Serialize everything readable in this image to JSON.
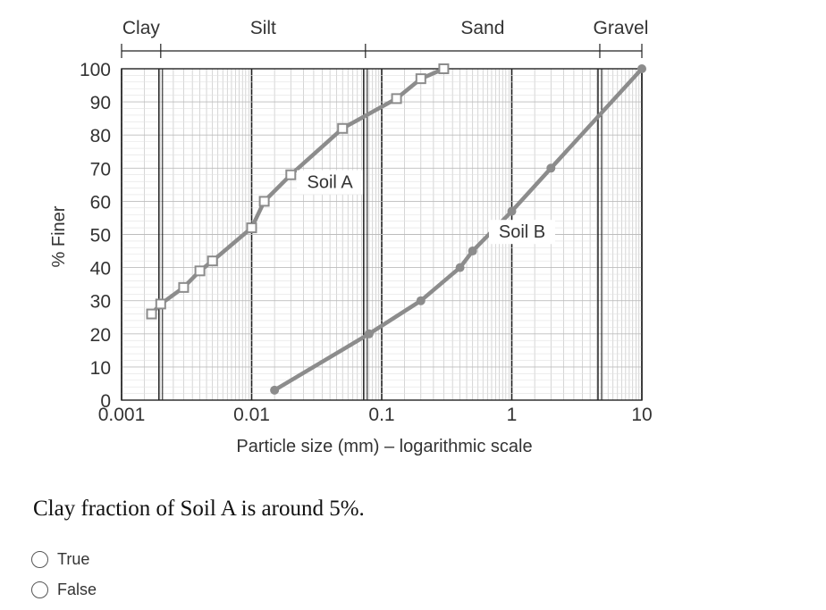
{
  "chart_data": {
    "type": "line",
    "x_scale": "log",
    "xlim": [
      0.001,
      10
    ],
    "ylim": [
      0,
      100
    ],
    "xlabel": "Particle size (mm) – logarithmic scale",
    "ylabel": "% Finer",
    "x_ticks": [
      {
        "value": 0.001,
        "label": "0.001"
      },
      {
        "value": 0.01,
        "label": "0.01"
      },
      {
        "value": 0.1,
        "label": "0.1"
      },
      {
        "value": 1,
        "label": "1"
      },
      {
        "value": 10,
        "label": "10"
      }
    ],
    "y_ticks": [
      0,
      10,
      20,
      30,
      40,
      50,
      60,
      70,
      80,
      90,
      100
    ],
    "grid": true,
    "series": [
      {
        "name": "Soil A",
        "marker": "open-square",
        "color": "#8c8c8c",
        "points": [
          [
            0.0017,
            26
          ],
          [
            0.002,
            29
          ],
          [
            0.003,
            34
          ],
          [
            0.004,
            39
          ],
          [
            0.005,
            42
          ],
          [
            0.01,
            52
          ],
          [
            0.0125,
            60
          ],
          [
            0.02,
            68
          ],
          [
            0.05,
            82
          ],
          [
            0.13,
            91
          ],
          [
            0.2,
            97
          ],
          [
            0.3,
            100
          ]
        ]
      },
      {
        "name": "Soil B",
        "marker": "filled-circle",
        "color": "#8c8c8c",
        "points": [
          [
            0.015,
            3
          ],
          [
            0.08,
            20
          ],
          [
            0.2,
            30
          ],
          [
            0.4,
            40
          ],
          [
            0.5,
            45
          ],
          [
            1,
            57
          ],
          [
            2,
            70
          ],
          [
            10,
            100
          ]
        ]
      }
    ],
    "annotations": [
      {
        "text": "Soil A",
        "x": 0.04,
        "y": 64
      },
      {
        "text": "Soil B",
        "x": 1.2,
        "y": 49
      }
    ],
    "size_ranges": [
      {
        "label": "Clay",
        "from": 0.001,
        "to": 0.002
      },
      {
        "label": "Silt",
        "from": 0.002,
        "to": 0.075
      },
      {
        "label": "Sand",
        "from": 0.075,
        "to": 4.75
      },
      {
        "label": "Gravel",
        "from": 4.75,
        "to": 10
      }
    ]
  },
  "question": {
    "text": "Clay fraction of Soil A is around 5%.",
    "options": [
      "True",
      "False"
    ]
  }
}
